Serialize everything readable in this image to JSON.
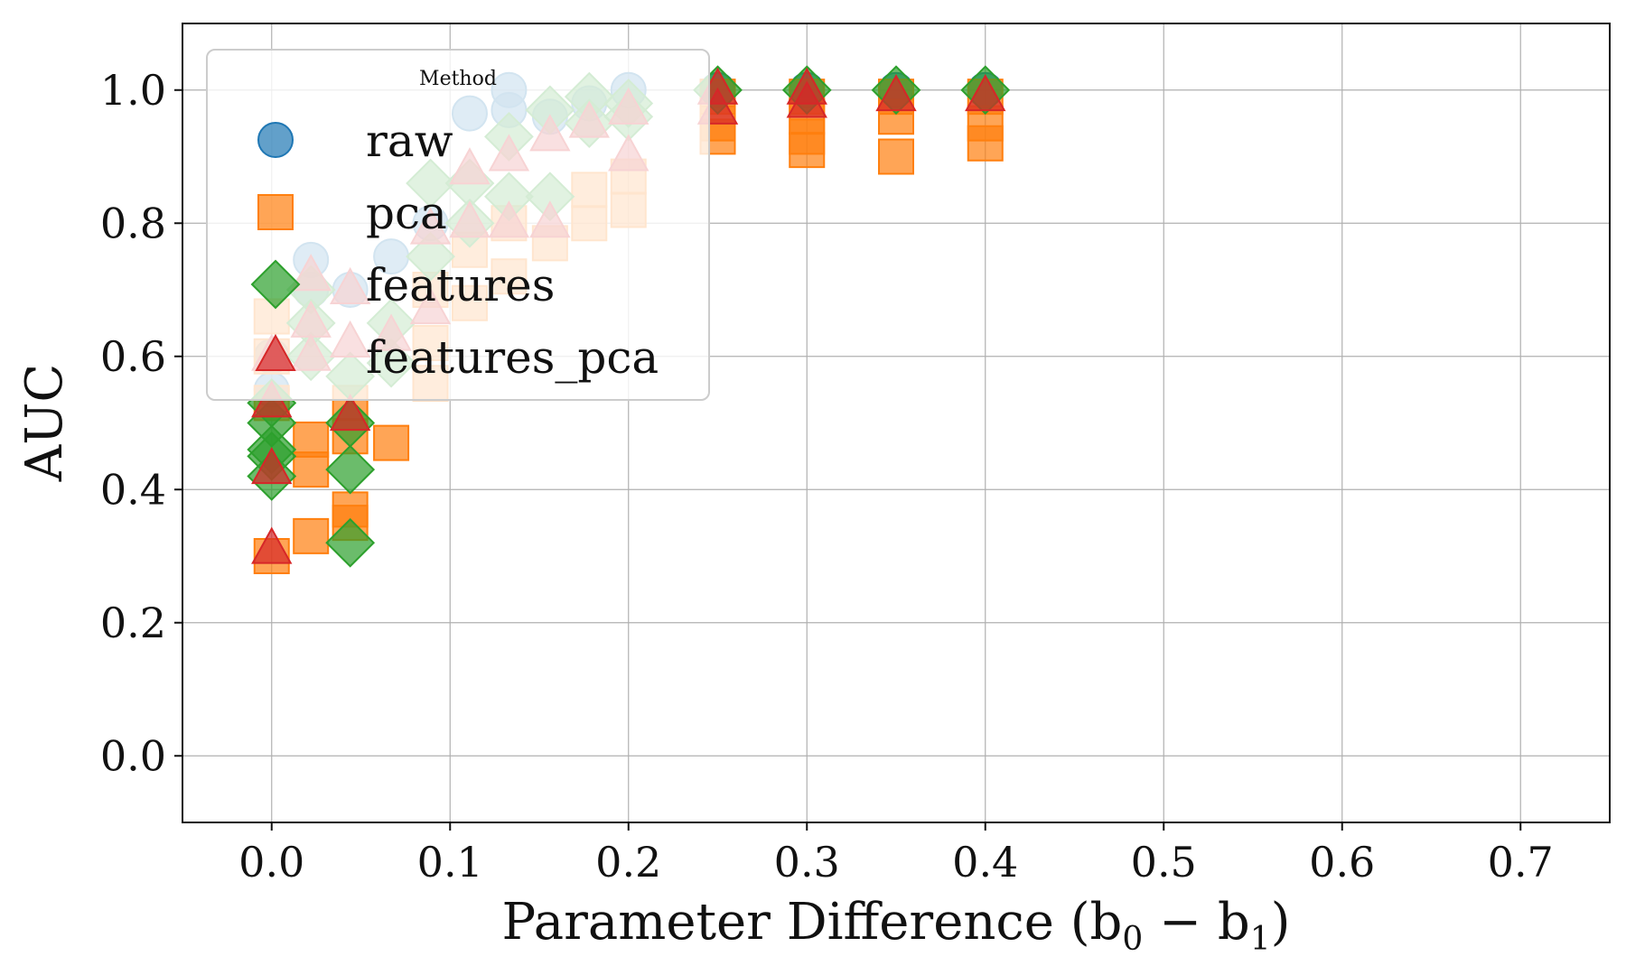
{
  "chart_data": {
    "type": "scatter",
    "title": "",
    "xlabel": "Parameter Difference (b",
    "xlabel_sub0": "0",
    "xlabel_minus": " − b",
    "xlabel_sub1": "1",
    "xlabel_close": ")",
    "ylabel": "AUC",
    "xlim": [
      -0.05,
      0.75
    ],
    "ylim": [
      -0.1,
      1.1
    ],
    "xticks": [
      0.0,
      0.1,
      0.2,
      0.3,
      0.4,
      0.5,
      0.6,
      0.7
    ],
    "xtick_labels": [
      "0.0",
      "0.1",
      "0.2",
      "0.3",
      "0.4",
      "0.5",
      "0.6",
      "0.7"
    ],
    "yticks": [
      0.0,
      0.2,
      0.4,
      0.6,
      0.8,
      1.0
    ],
    "ytick_labels": [
      "0.0",
      "0.2",
      "0.4",
      "0.6",
      "0.8",
      "1.0"
    ],
    "grid": true,
    "legend": {
      "title": "Method",
      "placement": "upper-left",
      "entries": [
        "raw",
        "pca",
        "features",
        "features_pca"
      ]
    },
    "series": [
      {
        "name": "raw",
        "marker": "circle",
        "color": "#1f77b4",
        "points": [
          [
            0.0,
            0.55
          ],
          [
            0.0,
            0.6
          ],
          [
            0.022,
            0.745
          ],
          [
            0.022,
            0.7
          ],
          [
            0.044,
            0.7
          ],
          [
            0.067,
            0.75
          ],
          [
            0.089,
            0.8
          ],
          [
            0.111,
            0.965
          ],
          [
            0.133,
            1.0
          ],
          [
            0.133,
            0.97
          ],
          [
            0.156,
            0.96
          ],
          [
            0.178,
            0.98
          ],
          [
            0.2,
            1.0
          ],
          [
            0.25,
            1.0
          ],
          [
            0.3,
            1.0
          ],
          [
            0.35,
            1.0
          ],
          [
            0.4,
            1.0
          ]
        ]
      },
      {
        "name": "pca",
        "marker": "square",
        "color": "#ff7f0e",
        "points": [
          [
            0.0,
            0.3
          ],
          [
            0.0,
            0.53
          ],
          [
            0.0,
            0.6
          ],
          [
            0.0,
            0.66
          ],
          [
            0.022,
            0.33
          ],
          [
            0.022,
            0.43
          ],
          [
            0.022,
            0.475
          ],
          [
            0.044,
            0.35
          ],
          [
            0.044,
            0.37
          ],
          [
            0.044,
            0.48
          ],
          [
            0.044,
            0.53
          ],
          [
            0.067,
            0.47
          ],
          [
            0.089,
            0.56
          ],
          [
            0.089,
            0.62
          ],
          [
            0.089,
            0.7
          ],
          [
            0.111,
            0.68
          ],
          [
            0.111,
            0.76
          ],
          [
            0.133,
            0.72
          ],
          [
            0.133,
            0.8
          ],
          [
            0.156,
            0.77
          ],
          [
            0.178,
            0.8
          ],
          [
            0.178,
            0.85
          ],
          [
            0.2,
            0.82
          ],
          [
            0.2,
            0.87
          ],
          [
            0.25,
            0.93
          ],
          [
            0.25,
            0.95
          ],
          [
            0.25,
            0.99
          ],
          [
            0.3,
            0.91
          ],
          [
            0.3,
            0.93
          ],
          [
            0.3,
            0.96
          ],
          [
            0.3,
            0.99
          ],
          [
            0.35,
            0.9
          ],
          [
            0.35,
            0.96
          ],
          [
            0.35,
            0.99
          ],
          [
            0.4,
            0.92
          ],
          [
            0.4,
            0.95
          ],
          [
            0.4,
            0.99
          ]
        ]
      },
      {
        "name": "features",
        "marker": "diamond",
        "color": "#2ca02c",
        "points": [
          [
            0.0,
            0.42
          ],
          [
            0.0,
            0.45
          ],
          [
            0.0,
            0.46
          ],
          [
            0.0,
            0.5
          ],
          [
            0.0,
            0.53
          ],
          [
            0.022,
            0.6
          ],
          [
            0.022,
            0.65
          ],
          [
            0.022,
            0.7
          ],
          [
            0.044,
            0.32
          ],
          [
            0.044,
            0.43
          ],
          [
            0.044,
            0.5
          ],
          [
            0.044,
            0.57
          ],
          [
            0.067,
            0.59
          ],
          [
            0.067,
            0.65
          ],
          [
            0.089,
            0.75
          ],
          [
            0.089,
            0.86
          ],
          [
            0.111,
            0.8
          ],
          [
            0.111,
            0.86
          ],
          [
            0.133,
            0.84
          ],
          [
            0.133,
            0.93
          ],
          [
            0.156,
            0.84
          ],
          [
            0.156,
            0.97
          ],
          [
            0.178,
            0.95
          ],
          [
            0.178,
            0.99
          ],
          [
            0.2,
            0.96
          ],
          [
            0.2,
            0.98
          ],
          [
            0.25,
            1.0
          ],
          [
            0.3,
            1.0
          ],
          [
            0.35,
            1.0
          ],
          [
            0.4,
            1.0
          ]
        ]
      },
      {
        "name": "features_pca",
        "marker": "triangle",
        "color": "#d62728",
        "points": [
          [
            0.0,
            0.31
          ],
          [
            0.0,
            0.43
          ],
          [
            0.0,
            0.53
          ],
          [
            0.0,
            0.6
          ],
          [
            0.022,
            0.6
          ],
          [
            0.022,
            0.65
          ],
          [
            0.022,
            0.72
          ],
          [
            0.044,
            0.51
          ],
          [
            0.044,
            0.62
          ],
          [
            0.044,
            0.7
          ],
          [
            0.067,
            0.63
          ],
          [
            0.089,
            0.67
          ],
          [
            0.089,
            0.79
          ],
          [
            0.111,
            0.8
          ],
          [
            0.111,
            0.88
          ],
          [
            0.133,
            0.8
          ],
          [
            0.133,
            0.9
          ],
          [
            0.156,
            0.8
          ],
          [
            0.156,
            0.93
          ],
          [
            0.178,
            0.95
          ],
          [
            0.2,
            0.9
          ],
          [
            0.2,
            0.97
          ],
          [
            0.25,
            0.97
          ],
          [
            0.25,
            1.0
          ],
          [
            0.3,
            0.98
          ],
          [
            0.3,
            1.0
          ],
          [
            0.35,
            0.99
          ],
          [
            0.4,
            0.99
          ]
        ]
      }
    ]
  }
}
